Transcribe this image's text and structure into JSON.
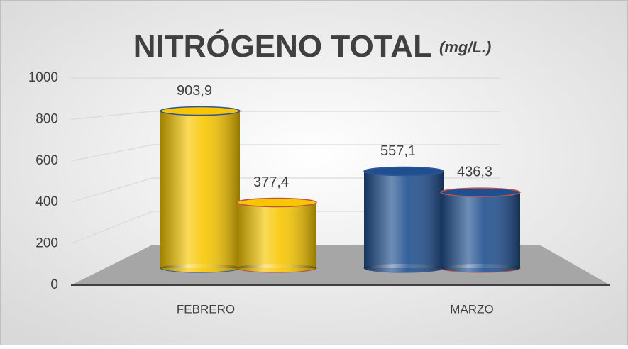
{
  "chart_data": {
    "type": "bar3d",
    "title": "NITRÓGENO TOTAL",
    "title_unit": "(mg/L.)",
    "categories": [
      "FEBRERO",
      "MARZO"
    ],
    "series": [
      {
        "values": [
          903.9,
          557.1
        ],
        "value_labels": [
          "903,9",
          "557,1"
        ]
      },
      {
        "values": [
          377.4,
          436.3
        ],
        "value_labels": [
          "377,4",
          "436,3"
        ]
      }
    ],
    "category_colors": [
      "#f7c600",
      "#1f4f8f"
    ],
    "ylim": [
      0,
      1000
    ],
    "yticks": [
      0,
      200,
      400,
      600,
      800,
      1000
    ],
    "grid": true
  }
}
